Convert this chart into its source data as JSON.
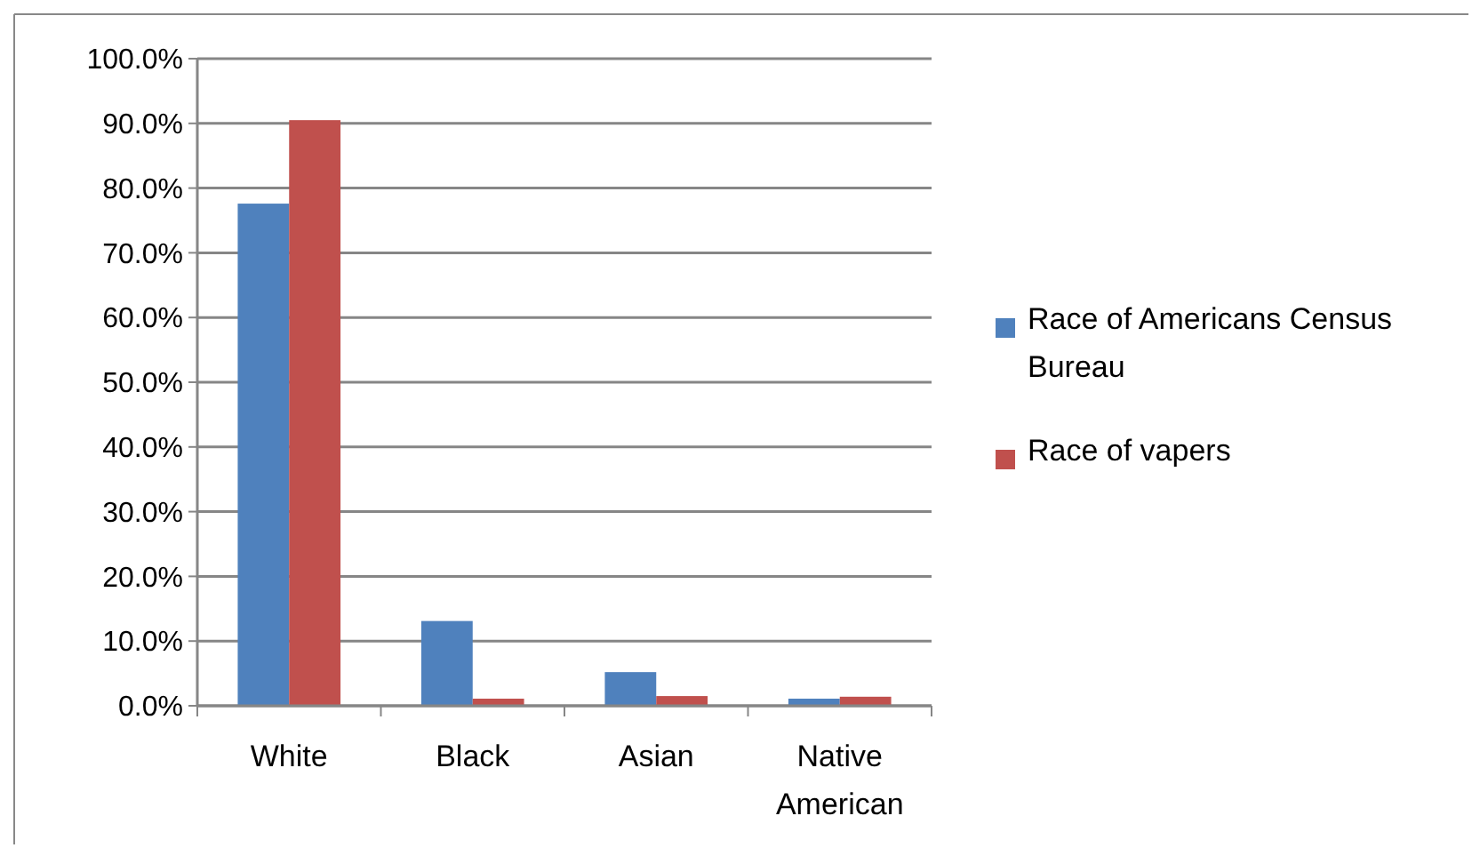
{
  "chart_data": {
    "type": "bar",
    "categories": [
      "White",
      "Black",
      "Asian",
      "Native American"
    ],
    "series": [
      {
        "name": "Race of Americans Census Bureau",
        "color": "#4f81bd",
        "values": [
          77.6,
          13.1,
          5.2,
          1.1
        ]
      },
      {
        "name": "Race of vapers",
        "color": "#c0504d",
        "values": [
          90.5,
          1.1,
          1.5,
          1.4
        ]
      }
    ],
    "ylim": [
      0,
      100
    ],
    "yticks": [
      {
        "value": 0,
        "label": "0.0%"
      },
      {
        "value": 10,
        "label": "10.0%"
      },
      {
        "value": 20,
        "label": "20.0%"
      },
      {
        "value": 30,
        "label": "30.0%"
      },
      {
        "value": 40,
        "label": "40.0%"
      },
      {
        "value": 50,
        "label": "50.0%"
      },
      {
        "value": 60,
        "label": "60.0%"
      },
      {
        "value": 70,
        "label": "70.0%"
      },
      {
        "value": 80,
        "label": "80.0%"
      },
      {
        "value": 90,
        "label": "90.0%"
      },
      {
        "value": 100,
        "label": "100.0%"
      }
    ],
    "grid": "y",
    "legend": "right"
  }
}
